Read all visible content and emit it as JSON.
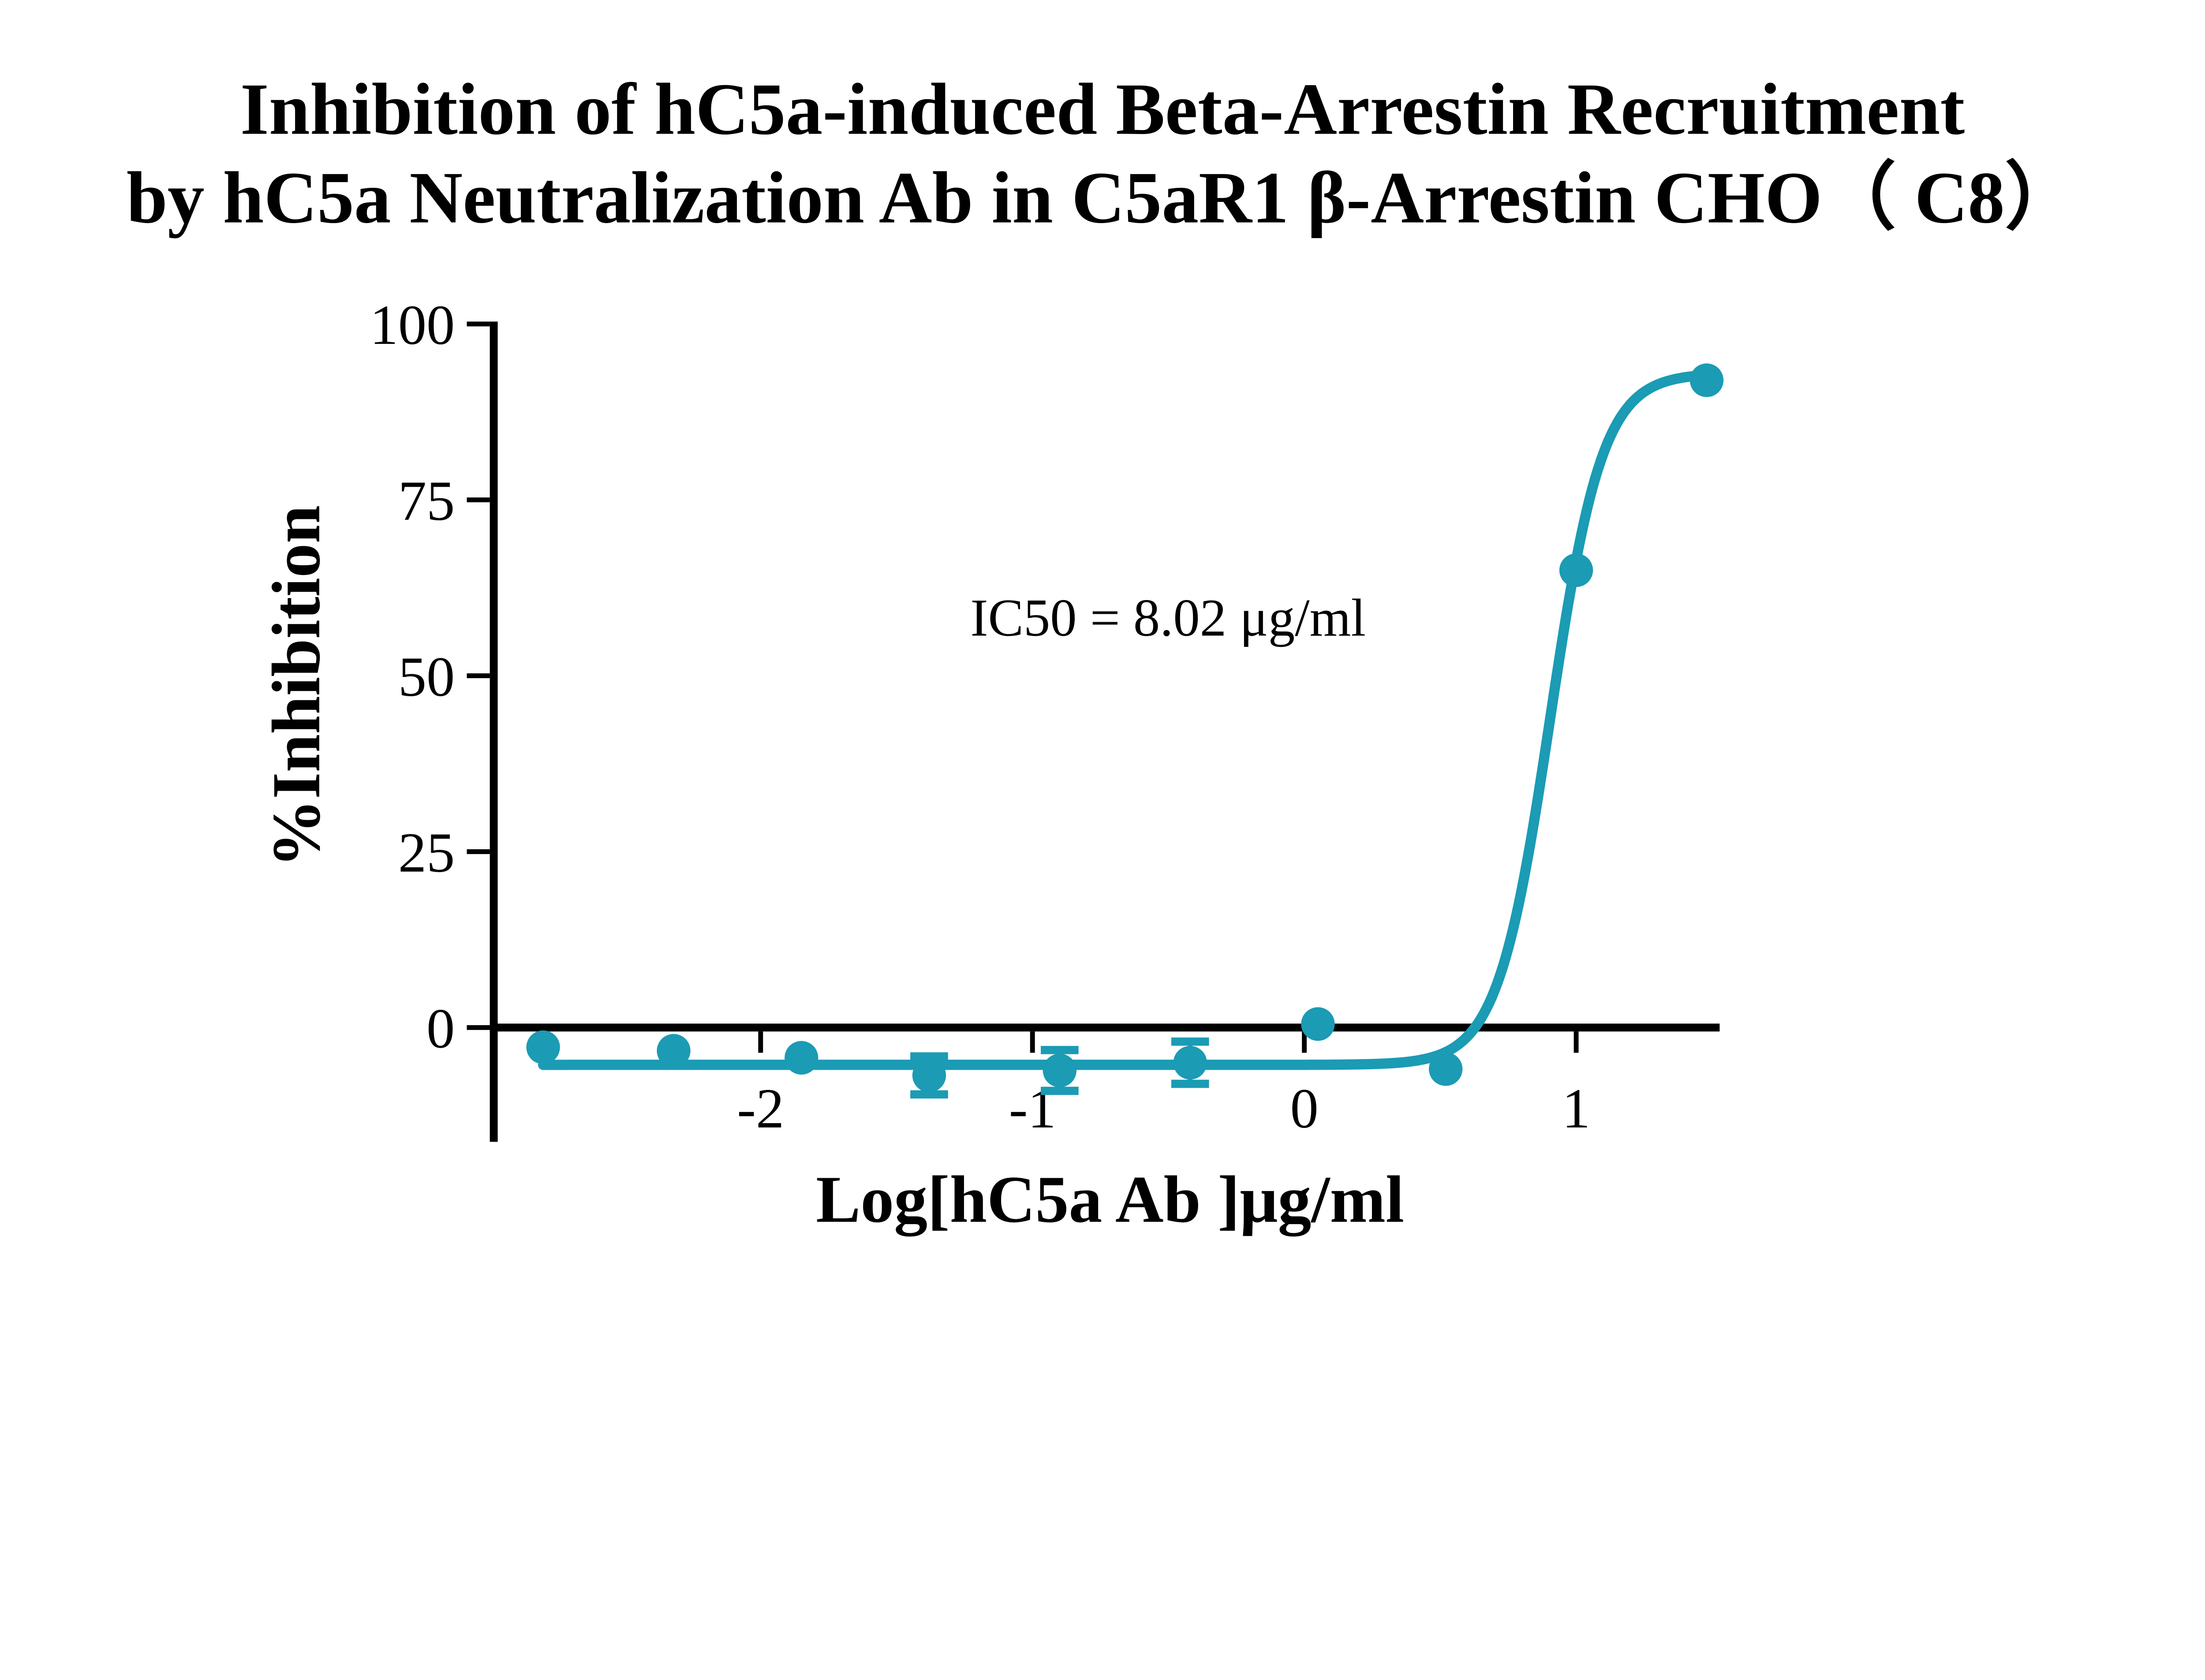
{
  "title": {
    "line1": "Inhibition of hC5a-induced Beta-Arrestin Recruitment",
    "line2": "by hC5a Neutralization Ab in C5aR1 β-Arrestin CHO（ C8）"
  },
  "chart_data": {
    "type": "scatter",
    "subtype": "dose-response-inhibition-curve",
    "title": "Inhibition of hC5a-induced Beta-Arrestin Recruitment by hC5a Neutralization Ab in C5aR1 β-Arrestin CHO（ C8）",
    "xlabel": "Log[hC5a Ab ]μg/ml",
    "ylabel": "%Inhibition",
    "annotation": "IC50 = 8.02 μg/ml",
    "ic50_ug_ml": 8.02,
    "legend": "none",
    "grid": false,
    "x_tick_values": [
      -2,
      -1,
      0,
      1
    ],
    "x_tick_labels": [
      "-2",
      "-1",
      "0",
      "1"
    ],
    "y_tick_values": [
      0,
      25,
      50,
      75,
      100
    ],
    "y_tick_labels": [
      "0",
      "25",
      "50",
      "75",
      "100"
    ],
    "x_axis_range": [
      -2.98,
      1.53
    ],
    "y_axis_range": [
      -16,
      100
    ],
    "series_color": "#1B9BB4",
    "axis_color": "#000000",
    "points": [
      {
        "x": -2.8,
        "y": -2.8,
        "err": null
      },
      {
        "x": -2.32,
        "y": -3.3,
        "err": null
      },
      {
        "x": -1.85,
        "y": -4.3,
        "err": null
      },
      {
        "x": -1.38,
        "y": -6.8,
        "err": 2.7
      },
      {
        "x": -0.9,
        "y": -6.1,
        "err": 2.9
      },
      {
        "x": -0.42,
        "y": -5.0,
        "err": 3.0
      },
      {
        "x": 0.05,
        "y": 0.5,
        "err": null
      },
      {
        "x": 0.52,
        "y": -5.9,
        "err": null
      },
      {
        "x": 1.0,
        "y": 65.0,
        "err": null
      },
      {
        "x": 1.48,
        "y": 92.0,
        "err": null
      }
    ],
    "fit_curve": {
      "model": "four-parameter logistic (variable slope)",
      "bottom": -5.3,
      "top": 93.0,
      "hill_slope": 4.5,
      "log_ic50": 0.904,
      "x_start": -2.8,
      "x_end": 1.43
    }
  }
}
